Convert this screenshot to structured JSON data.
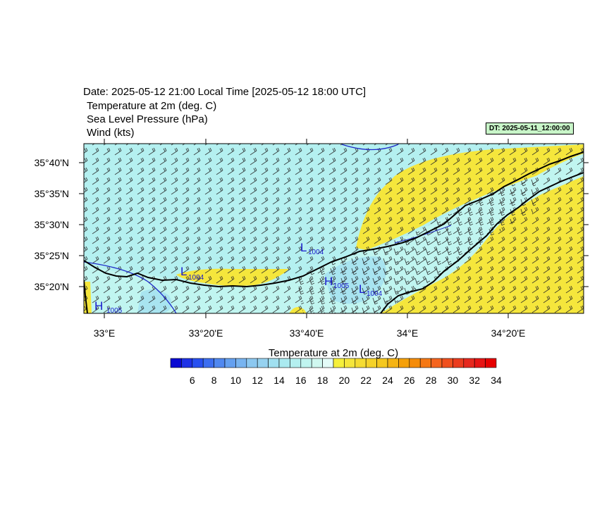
{
  "header": {
    "date_line": "Date: 2025-05-12  21:00 Local Time [2025-05-12  18:00 UTC]",
    "field_1": "Temperature at 2m   (deg. C)",
    "field_2": "Sea Level Pressure   (hPa)",
    "field_3": "Wind   (kts)",
    "init_badge": "DT: 2025-05-11_12:00:00"
  },
  "map": {
    "lat_labels": [
      "35°40'N",
      "35°35'N",
      "35°30'N",
      "35°25'N",
      "35°20'N"
    ],
    "lon_labels": [
      "33°E",
      "33°20'E",
      "33°40'E",
      "34°E",
      "34°20'E"
    ],
    "sea_color": "#b4f0f0",
    "land_color": "#f5e63c",
    "pressure_centers": [
      {
        "type": "L",
        "value": "1004"
      },
      {
        "type": "L",
        "value": "1004"
      },
      {
        "type": "H",
        "value": "1005"
      },
      {
        "type": "L",
        "value": "1004"
      },
      {
        "type": "H",
        "value": "1005"
      }
    ]
  },
  "colorbar": {
    "title": "Temperature at 2m  (deg. C)",
    "labels": [
      "6",
      "8",
      "10",
      "12",
      "14",
      "16",
      "18",
      "20",
      "22",
      "24",
      "26",
      "28",
      "30",
      "32",
      "34"
    ],
    "colors": [
      "#0a0ad2",
      "#1e32e6",
      "#2850f0",
      "#3c6ef0",
      "#5088f0",
      "#64a0f0",
      "#78b4f0",
      "#8cc8f0",
      "#96d2f0",
      "#a0e0f0",
      "#aaeaf0",
      "#b4f0f0",
      "#c0f5f0",
      "#d0f8f0",
      "#e4fcf8",
      "#f5f03c",
      "#f5e63c",
      "#f5dc32",
      "#f5d228",
      "#f5c81e",
      "#f5b414",
      "#f5a00a",
      "#f58c0a",
      "#f57814",
      "#f5641e",
      "#f0501e",
      "#eb3c1e",
      "#e6281e",
      "#e61414",
      "#e60000"
    ]
  }
}
